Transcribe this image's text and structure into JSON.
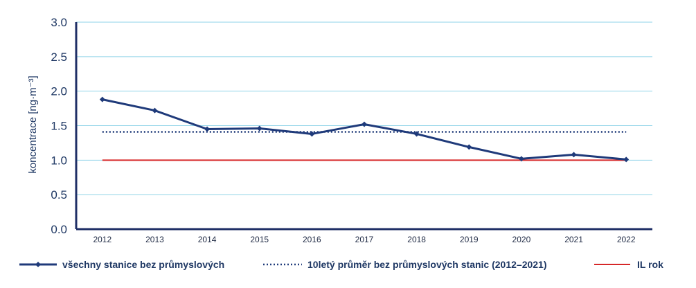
{
  "chart_data": {
    "type": "line",
    "ylabel": "koncentrace [ng·m⁻³]",
    "ylim": [
      0,
      3.0
    ],
    "yticks": [
      "0.0",
      "0.5",
      "1.0",
      "1.5",
      "2.0",
      "2.5",
      "3.0"
    ],
    "categories": [
      "2012",
      "2013",
      "2014",
      "2015",
      "2016",
      "2017",
      "2018",
      "2019",
      "2020",
      "2021",
      "2022"
    ],
    "grid": true,
    "legend": "bottom",
    "series": [
      {
        "name": "všechny stanice bez průmyslových",
        "style": "solid-diamond",
        "color": "#1f3a7a",
        "values": [
          1.88,
          1.72,
          1.45,
          1.46,
          1.38,
          1.52,
          1.38,
          1.19,
          1.02,
          1.08,
          1.01
        ]
      },
      {
        "name": "10letý průměr bez průmyslových stanic (2012–2021)",
        "style": "dotted",
        "color": "#1f3a7a",
        "values": [
          1.41,
          1.41,
          1.41,
          1.41,
          1.41,
          1.41,
          1.41,
          1.41,
          1.41,
          1.41,
          1.41
        ]
      },
      {
        "name": "IL rok",
        "style": "solid",
        "color": "#d62728",
        "values": [
          1.0,
          1.0,
          1.0,
          1.0,
          1.0,
          1.0,
          1.0,
          1.0,
          1.0,
          1.0,
          1.0
        ]
      }
    ]
  }
}
